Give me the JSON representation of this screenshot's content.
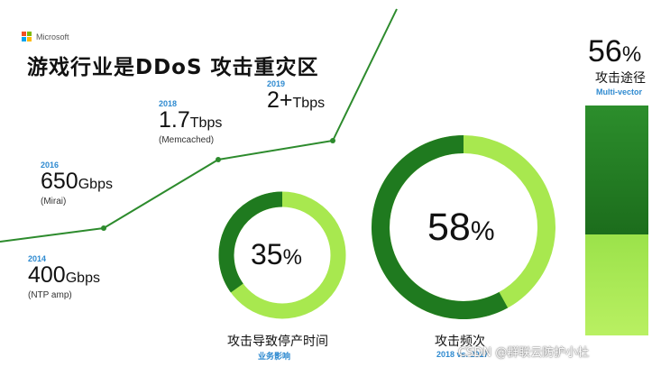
{
  "brand": {
    "name": "Microsoft",
    "colors": [
      "#f25022",
      "#7fba00",
      "#00a4ef",
      "#ffb900"
    ]
  },
  "title": "游戏行业是DDoS 攻击重灾区",
  "timeline": [
    {
      "year": "2014",
      "value": "400",
      "unit": "Gbps",
      "note": "(NTP amp)"
    },
    {
      "year": "2016",
      "value": "650",
      "unit": "Gbps",
      "note": "(Mirai)"
    },
    {
      "year": "2018",
      "value": "1.7",
      "unit": "Tbps",
      "note": "(Memcached)"
    },
    {
      "year": "2019",
      "value": "2+",
      "unit": "Tbps",
      "note": ""
    }
  ],
  "stats": {
    "downtime": {
      "percent": "35",
      "fraction": 0.35,
      "sign": "%",
      "label": "攻击导致停产时间",
      "sub": "业务影响"
    },
    "frequency": {
      "percent": "58",
      "fraction": 0.58,
      "sign": "%",
      "label": "攻击频次",
      "sub": "2018 vs. 2017"
    },
    "vectors": {
      "percent": "56",
      "fraction": 0.56,
      "sign": "%",
      "label": "攻击途径",
      "sub": "Multi-vector"
    }
  },
  "colors": {
    "dark_green": "#1f7a1f",
    "light_green": "#a8e84f",
    "accent_blue": "#2e8ad0"
  },
  "watermark": "CSDN @群联云防护小杜"
}
